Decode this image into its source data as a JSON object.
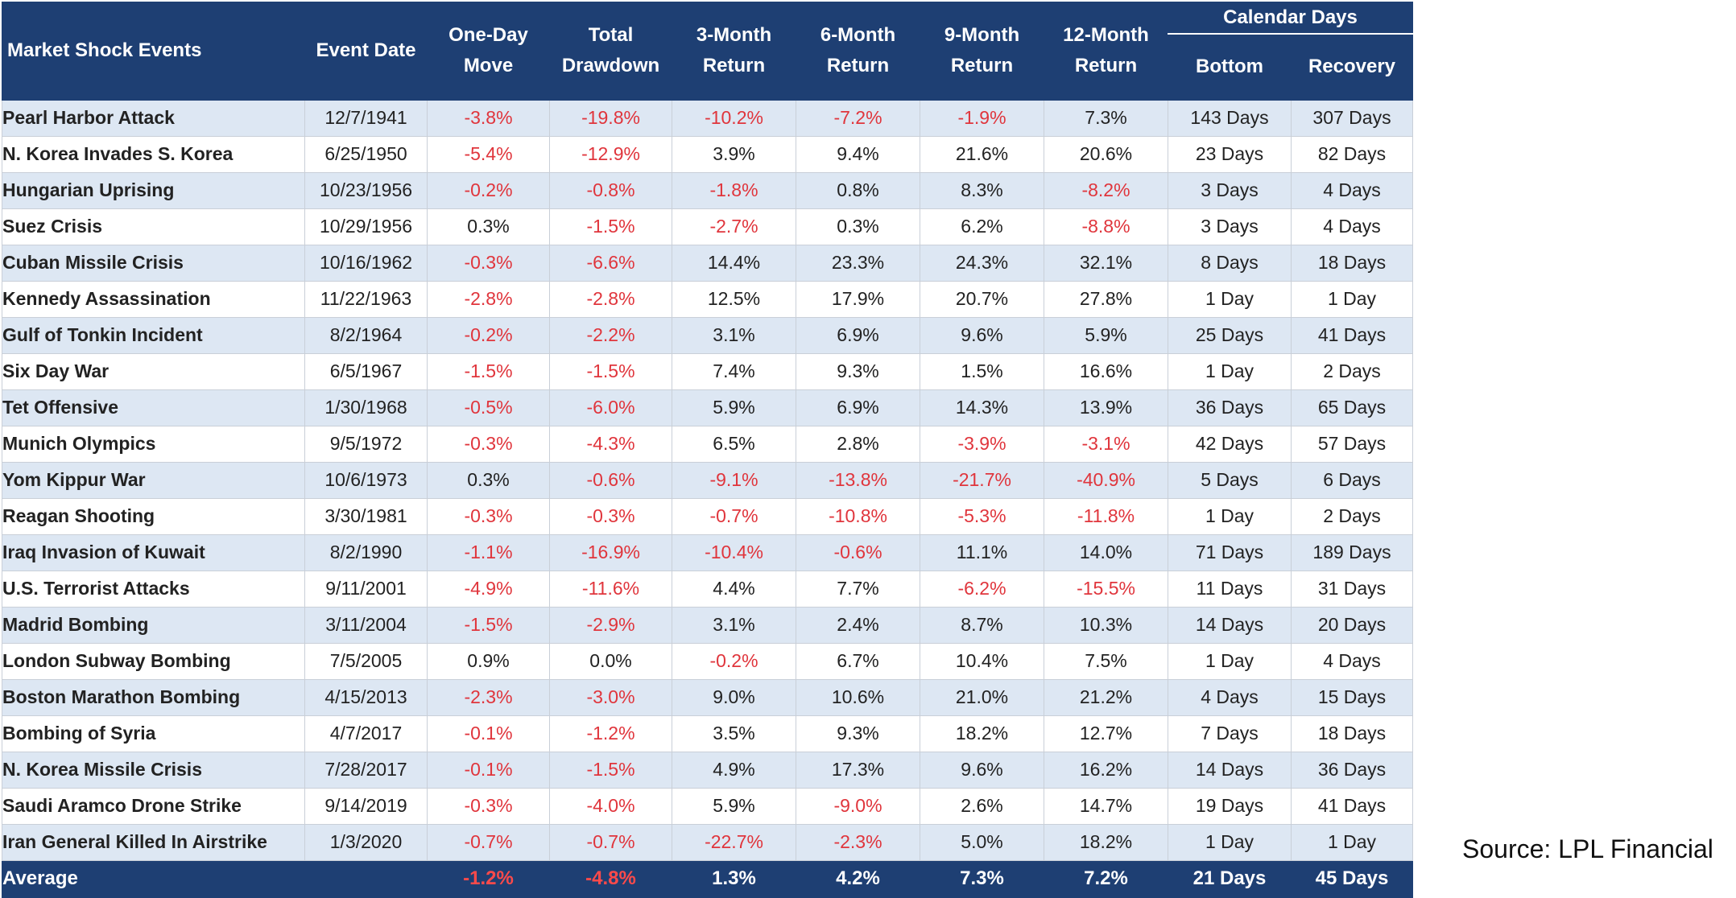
{
  "table": {
    "group_header": "Calendar Days",
    "columns": [
      {
        "line1": "Market Shock Events",
        "line2": ""
      },
      {
        "line1": "Event Date",
        "line2": ""
      },
      {
        "line1": "One-Day",
        "line2": "Move"
      },
      {
        "line1": "Total",
        "line2": "Drawdown"
      },
      {
        "line1": "3-Month",
        "line2": "Return"
      },
      {
        "line1": "6-Month",
        "line2": "Return"
      },
      {
        "line1": "9-Month",
        "line2": "Return"
      },
      {
        "line1": "12-Month",
        "line2": "Return"
      },
      {
        "line1": "Bottom",
        "line2": ""
      },
      {
        "line1": "Recovery",
        "line2": ""
      }
    ],
    "rows": [
      [
        "Pearl Harbor Attack",
        "12/7/1941",
        "-3.8%",
        "-19.8%",
        "-10.2%",
        "-7.2%",
        "-1.9%",
        "7.3%",
        "143 Days",
        "307 Days"
      ],
      [
        "N. Korea Invades S. Korea",
        "6/25/1950",
        "-5.4%",
        "-12.9%",
        "3.9%",
        "9.4%",
        "21.6%",
        "20.6%",
        "23 Days",
        "82 Days"
      ],
      [
        "Hungarian Uprising",
        "10/23/1956",
        "-0.2%",
        "-0.8%",
        "-1.8%",
        "0.8%",
        "8.3%",
        "-8.2%",
        "3 Days",
        "4 Days"
      ],
      [
        "Suez Crisis",
        "10/29/1956",
        "0.3%",
        "-1.5%",
        "-2.7%",
        "0.3%",
        "6.2%",
        "-8.8%",
        "3 Days",
        "4 Days"
      ],
      [
        "Cuban Missile Crisis",
        "10/16/1962",
        "-0.3%",
        "-6.6%",
        "14.4%",
        "23.3%",
        "24.3%",
        "32.1%",
        "8 Days",
        "18 Days"
      ],
      [
        "Kennedy Assassination",
        "11/22/1963",
        "-2.8%",
        "-2.8%",
        "12.5%",
        "17.9%",
        "20.7%",
        "27.8%",
        "1 Day",
        "1 Day"
      ],
      [
        "Gulf of Tonkin Incident",
        "8/2/1964",
        "-0.2%",
        "-2.2%",
        "3.1%",
        "6.9%",
        "9.6%",
        "5.9%",
        "25 Days",
        "41 Days"
      ],
      [
        "Six Day War",
        "6/5/1967",
        "-1.5%",
        "-1.5%",
        "7.4%",
        "9.3%",
        "1.5%",
        "16.6%",
        "1 Day",
        "2 Days"
      ],
      [
        "Tet Offensive",
        "1/30/1968",
        "-0.5%",
        "-6.0%",
        "5.9%",
        "6.9%",
        "14.3%",
        "13.9%",
        "36 Days",
        "65 Days"
      ],
      [
        "Munich Olympics",
        "9/5/1972",
        "-0.3%",
        "-4.3%",
        "6.5%",
        "2.8%",
        "-3.9%",
        "-3.1%",
        "42 Days",
        "57 Days"
      ],
      [
        "Yom Kippur War",
        "10/6/1973",
        "0.3%",
        "-0.6%",
        "-9.1%",
        "-13.8%",
        "-21.7%",
        "-40.9%",
        "5 Days",
        "6 Days"
      ],
      [
        "Reagan Shooting",
        "3/30/1981",
        "-0.3%",
        "-0.3%",
        "-0.7%",
        "-10.8%",
        "-5.3%",
        "-11.8%",
        "1 Day",
        "2 Days"
      ],
      [
        "Iraq Invasion of Kuwait",
        "8/2/1990",
        "-1.1%",
        "-16.9%",
        "-10.4%",
        "-0.6%",
        "11.1%",
        "14.0%",
        "71 Days",
        "189 Days"
      ],
      [
        "U.S. Terrorist Attacks",
        "9/11/2001",
        "-4.9%",
        "-11.6%",
        "4.4%",
        "7.7%",
        "-6.2%",
        "-15.5%",
        "11 Days",
        "31 Days"
      ],
      [
        "Madrid Bombing",
        "3/11/2004",
        "-1.5%",
        "-2.9%",
        "3.1%",
        "2.4%",
        "8.7%",
        "10.3%",
        "14 Days",
        "20 Days"
      ],
      [
        "London Subway Bombing",
        "7/5/2005",
        "0.9%",
        "0.0%",
        "-0.2%",
        "6.7%",
        "10.4%",
        "7.5%",
        "1 Day",
        "4 Days"
      ],
      [
        "Boston Marathon Bombing",
        "4/15/2013",
        "-2.3%",
        "-3.0%",
        "9.0%",
        "10.6%",
        "21.0%",
        "21.2%",
        "4 Days",
        "15 Days"
      ],
      [
        "Bombing of Syria",
        "4/7/2017",
        "-0.1%",
        "-1.2%",
        "3.5%",
        "9.3%",
        "18.2%",
        "12.7%",
        "7 Days",
        "18 Days"
      ],
      [
        "N. Korea Missile Crisis",
        "7/28/2017",
        "-0.1%",
        "-1.5%",
        "4.9%",
        "17.3%",
        "9.6%",
        "16.2%",
        "14 Days",
        "36 Days"
      ],
      [
        "Saudi Aramco Drone Strike",
        "9/14/2019",
        "-0.3%",
        "-4.0%",
        "5.9%",
        "-9.0%",
        "2.6%",
        "14.7%",
        "19 Days",
        "41 Days"
      ],
      [
        "Iran General Killed In Airstrike",
        "1/3/2020",
        "-0.7%",
        "-0.7%",
        "-22.7%",
        "-2.3%",
        "5.0%",
        "18.2%",
        "1 Day",
        "1 Day"
      ]
    ],
    "average": [
      "Average",
      "",
      "-1.2%",
      "-4.8%",
      "1.3%",
      "4.2%",
      "7.3%",
      "7.2%",
      "21 Days",
      "45 Days"
    ]
  },
  "colors": {
    "header_bg": "#1e3f73",
    "row_shade": "#dde7f3",
    "negative": "#e0353c"
  },
  "source": "Source: LPL Financial"
}
